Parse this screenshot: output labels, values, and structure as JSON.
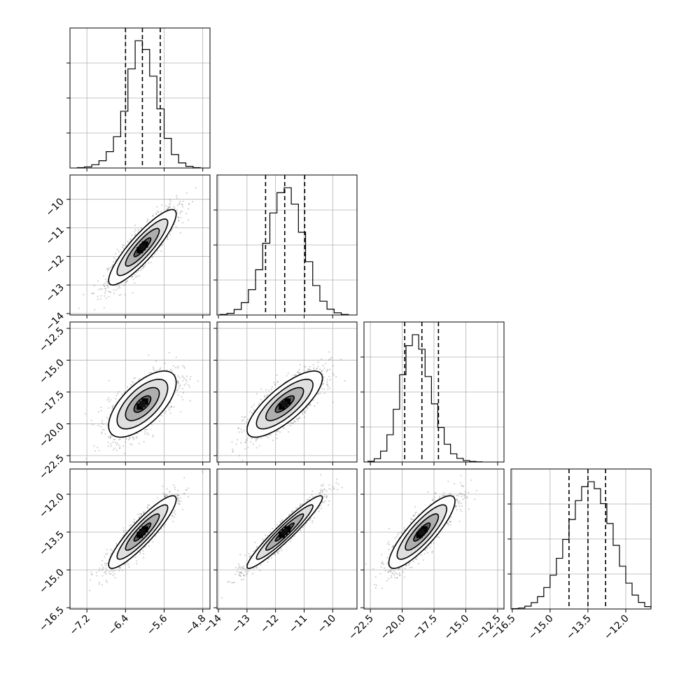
{
  "colors": {
    "background": "#ffffff",
    "axis": "#000000",
    "grid": "#b0b0b0",
    "histogram": "#000000",
    "quantile_line": "#000000",
    "contour": "#000000",
    "scatter": "#7f7f7f"
  },
  "chart_data": {
    "type": "corner",
    "title": "",
    "n_params": 4,
    "grid": true,
    "quantiles": [
      0.16,
      0.5,
      0.84
    ],
    "params": [
      {
        "index": 0,
        "range": [
          -7.55,
          -4.65
        ],
        "ticks": [
          -7.2,
          -6.4,
          -5.6,
          -4.8
        ],
        "tick_labels": [
          "−7.2",
          "−6.4",
          "−5.6",
          "−4.8"
        ],
        "quantile_values": [
          -6.4,
          -6.05,
          -5.68
        ]
      },
      {
        "index": 1,
        "range": [
          -14.05,
          -9.15
        ],
        "ticks": [
          -14,
          -13,
          -12,
          -11,
          -10
        ],
        "tick_labels": [
          "−14",
          "−13",
          "−12",
          "−11",
          "−10"
        ],
        "quantile_values": [
          -12.35,
          -11.68,
          -10.98
        ]
      },
      {
        "index": 2,
        "range": [
          -23.0,
          -12.0
        ],
        "ticks": [
          -22.5,
          -20.0,
          -17.5,
          -15.0,
          -12.5
        ],
        "tick_labels": [
          "−22.5",
          "−20.0",
          "−17.5",
          "−15.0",
          "−12.5"
        ],
        "quantile_values": [
          -19.8,
          -18.45,
          -17.15
        ]
      },
      {
        "index": 3,
        "range": [
          -16.55,
          -11.0
        ],
        "ticks": [
          -16.5,
          -15.0,
          -13.5,
          -12.0
        ],
        "tick_labels": [
          "−16.5",
          "−15.0",
          "−13.5",
          "−12.0"
        ],
        "quantile_values": [
          -14.25,
          -13.5,
          -12.8
        ]
      }
    ],
    "histograms": [
      {
        "param": 0,
        "bin_edges": [
          -7.4,
          -7.25,
          -7.1,
          -6.95,
          -6.8,
          -6.65,
          -6.5,
          -6.35,
          -6.2,
          -6.05,
          -5.9,
          -5.75,
          -5.6,
          -5.45,
          -5.3,
          -5.15,
          -5.0,
          -4.85
        ],
        "counts": [
          2,
          6,
          18,
          40,
          90,
          172,
          312,
          545,
          700,
          652,
          505,
          325,
          163,
          74,
          28,
          9,
          2
        ]
      },
      {
        "param": 1,
        "bin_edges": [
          -13.95,
          -13.7,
          -13.45,
          -13.2,
          -12.95,
          -12.7,
          -12.45,
          -12.2,
          -11.95,
          -11.7,
          -11.45,
          -11.2,
          -10.95,
          -10.7,
          -10.45,
          -10.2,
          -9.95,
          -9.7,
          -9.45
        ],
        "counts": [
          3,
          9,
          30,
          67,
          138,
          246,
          390,
          555,
          665,
          692,
          603,
          450,
          290,
          160,
          75,
          32,
          12,
          3
        ]
      },
      {
        "param": 2,
        "bin_edges": [
          -22.7,
          -22.2,
          -21.7,
          -21.2,
          -20.7,
          -20.2,
          -19.7,
          -19.2,
          -18.7,
          -18.2,
          -17.7,
          -17.2,
          -16.7,
          -16.2,
          -15.7,
          -15.2,
          -14.7,
          -14.2,
          -13.7
        ],
        "counts": [
          4,
          18,
          60,
          150,
          290,
          480,
          640,
          700,
          620,
          470,
          320,
          190,
          98,
          45,
          20,
          8,
          3,
          1
        ]
      },
      {
        "param": 3,
        "bin_edges": [
          -16.5,
          -16.25,
          -16.0,
          -15.75,
          -15.5,
          -15.25,
          -15.0,
          -14.75,
          -14.5,
          -14.25,
          -14.0,
          -13.75,
          -13.5,
          -13.25,
          -13.0,
          -12.75,
          -12.5,
          -12.25,
          -12.0,
          -11.75,
          -11.5,
          -11.25,
          -11.0
        ],
        "counts": [
          2,
          5,
          14,
          32,
          62,
          108,
          170,
          255,
          350,
          450,
          545,
          615,
          640,
          605,
          530,
          430,
          320,
          215,
          130,
          70,
          33,
          12,
          4
        ]
      }
    ],
    "pairs": [
      {
        "x_param": 0,
        "y_param": 1,
        "center": [
          -6.05,
          -11.68
        ],
        "sd": [
          0.35,
          0.66
        ],
        "correlation": 0.88
      },
      {
        "x_param": 0,
        "y_param": 2,
        "center": [
          -6.05,
          -18.45
        ],
        "sd": [
          0.35,
          1.3
        ],
        "correlation": 0.65
      },
      {
        "x_param": 1,
        "y_param": 2,
        "center": [
          -11.68,
          -18.45
        ],
        "sd": [
          0.66,
          1.3
        ],
        "correlation": 0.78
      },
      {
        "x_param": 0,
        "y_param": 3,
        "center": [
          -6.05,
          -13.5
        ],
        "sd": [
          0.35,
          0.72
        ],
        "correlation": 0.9
      },
      {
        "x_param": 1,
        "y_param": 3,
        "center": [
          -11.68,
          -13.5
        ],
        "sd": [
          0.66,
          0.72
        ],
        "correlation": 0.95
      },
      {
        "x_param": 2,
        "y_param": 3,
        "center": [
          -18.45,
          -13.5
        ],
        "sd": [
          1.3,
          0.72
        ],
        "correlation": 0.85
      }
    ],
    "contour_levels_sigma": [
      0.5,
      1.0,
      1.5,
      2.0
    ]
  }
}
